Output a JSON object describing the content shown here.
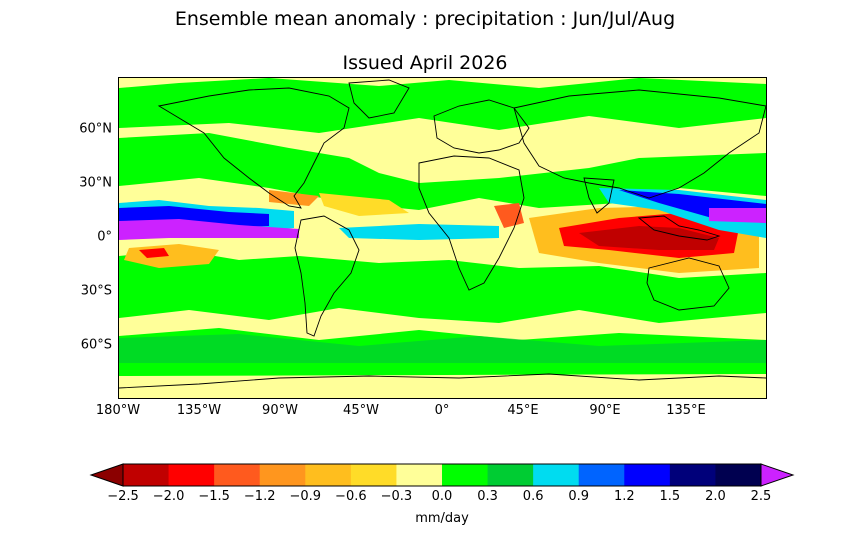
{
  "title": "Ensemble mean anomaly : precipitation : Jun/Jul/Aug",
  "subtitle": "Issued April 2026",
  "map": {
    "lat_ticks": [
      "60°N",
      "30°N",
      "0°",
      "30°S",
      "60°S"
    ],
    "lon_ticks": [
      "180°W",
      "135°W",
      "90°W",
      "45°W",
      "0°",
      "45°E",
      "90°E",
      "135°E"
    ],
    "lat_values": [
      60,
      30,
      0,
      -30,
      -60
    ],
    "lon_values": [
      -180,
      -135,
      -90,
      -45,
      0,
      45,
      90,
      135
    ],
    "extent": {
      "lon": [
        -180,
        180
      ],
      "lat": [
        -90,
        90
      ]
    },
    "background_color": "#ffff99"
  },
  "colorbar": {
    "units": "mm/day",
    "labels": [
      "−2.5",
      "−2.0",
      "−1.5",
      "−1.2",
      "−0.9",
      "−0.6",
      "−0.3",
      "0.0",
      "0.3",
      "0.6",
      "0.9",
      "1.2",
      "1.5",
      "2.0",
      "2.5"
    ],
    "levels": [
      -2.5,
      -2.0,
      -1.5,
      -1.2,
      -0.9,
      -0.6,
      -0.3,
      0.0,
      0.3,
      0.6,
      0.9,
      1.2,
      1.5,
      2.0,
      2.5
    ],
    "colors": [
      "#c00000",
      "#ff0000",
      "#ff5a1e",
      "#ff961e",
      "#ffbe1e",
      "#ffdc28",
      "#ffff99",
      "#00ff00",
      "#00cc33",
      "#00dcf0",
      "#0064ff",
      "#0000ff",
      "#00007a",
      "#000050"
    ],
    "under_color": "#8b0000",
    "over_color": "#cc22ff"
  }
}
